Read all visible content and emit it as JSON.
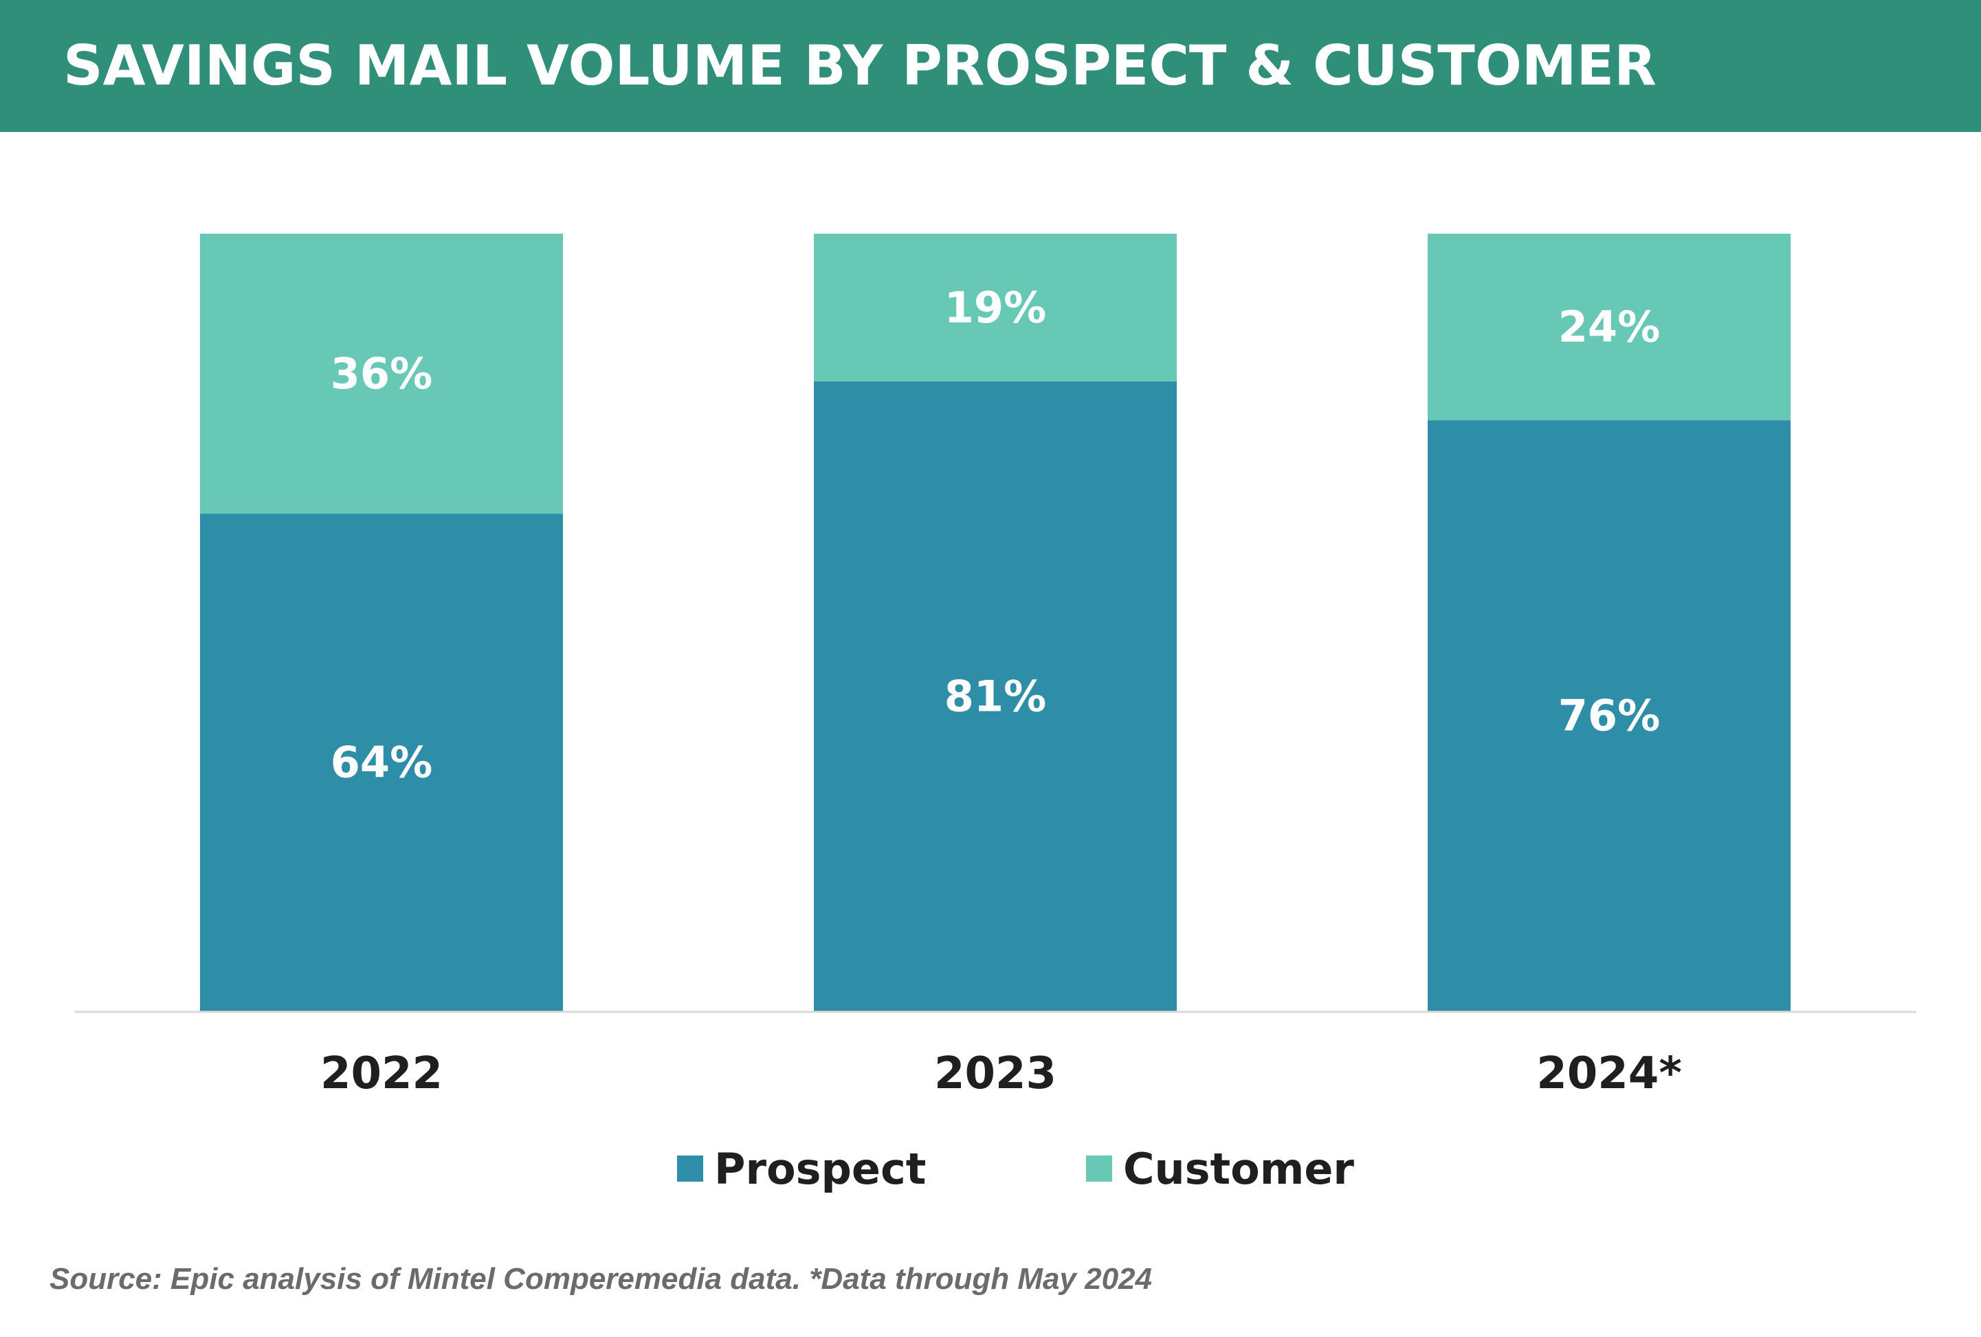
{
  "title": "SAVINGS MAIL VOLUME BY PROSPECT & CUSTOMER",
  "colors": {
    "banner": "#2f8f78",
    "prospect": "#2e8ea8",
    "customer": "#67c9b5",
    "axis": "#d9d9d9",
    "label_text": "#ffffff",
    "category_text": "#1f1f1f"
  },
  "chart_data": {
    "type": "bar",
    "stacked": true,
    "categories": [
      "2022",
      "2023",
      "2024*"
    ],
    "series": [
      {
        "name": "Prospect",
        "values": [
          64,
          81,
          76
        ],
        "labels": [
          "64%",
          "81%",
          "76%"
        ],
        "color": "#2e8ea8"
      },
      {
        "name": "Customer",
        "values": [
          36,
          19,
          24
        ],
        "labels": [
          "36%",
          "19%",
          "24%"
        ],
        "color": "#67c9b5"
      }
    ],
    "ylim": [
      0,
      100
    ],
    "grid": false,
    "legend_position": "bottom"
  },
  "legend": {
    "items": [
      {
        "label": "Prospect",
        "color": "#2e8ea8"
      },
      {
        "label": "Customer",
        "color": "#67c9b5"
      }
    ]
  },
  "source": "Source: Epic analysis of Mintel Comperemedia data. *Data through May 2024"
}
